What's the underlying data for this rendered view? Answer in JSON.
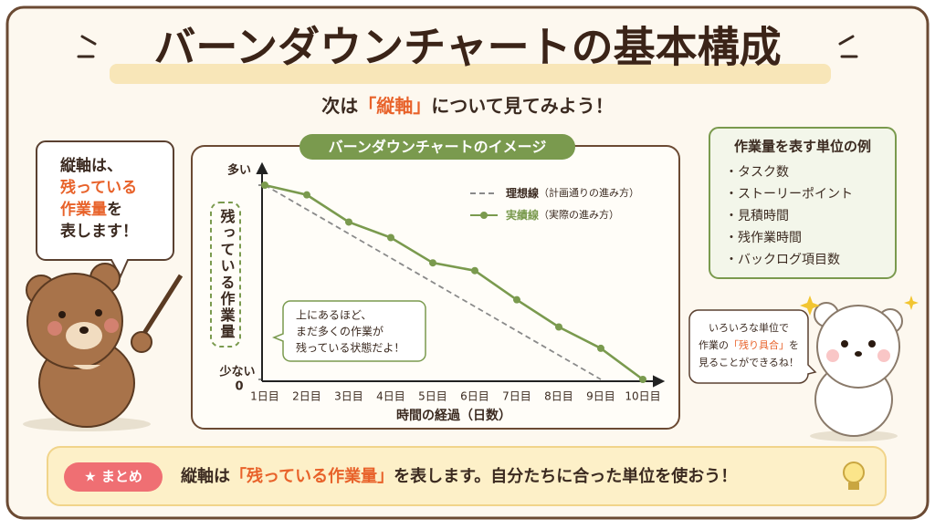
{
  "header": {
    "title": "バーンダウンチャートの基本構成",
    "subtitle": [
      "次は",
      "「縦軸」",
      "について見てみよう！"
    ]
  },
  "left_bubble": [
    "縦軸は、",
    "残っている",
    "作業量",
    "を",
    "表します！"
  ],
  "units_box": {
    "title": "作業量を表す単位の例",
    "items": [
      "・タスク数",
      "・ストーリーポイント",
      "・見積時間",
      "・残作業時間",
      "・バックログ項目数"
    ]
  },
  "right_bubble": [
    "いろいろな単位で",
    "作業の",
    "「残り具合」",
    "を",
    "見ることができるね！"
  ],
  "summary": {
    "badge": "★ まとめ",
    "text": [
      "縦軸は",
      "「残っている作業量」",
      "を表します。自分たちに合った単位を使おう！"
    ]
  },
  "chart_data": {
    "type": "line",
    "title": "バーンダウンチャートのイメージ",
    "y_axis_label": "残っている作業量",
    "x_axis_label": "時間の経過（日数）",
    "y_low_label": "少ない",
    "callout": [
      "上にあるほど、",
      "まだ多くの作業が",
      "残っている状態だよ！"
    ],
    "categories": [
      "1日目",
      "2日目",
      "3日目",
      "4日目",
      "5日目",
      "6日目",
      "7日目",
      "8日目",
      "9日目",
      "10日目"
    ],
    "ylim": [
      0,
      100
    ],
    "yticks": [
      {
        "value": 100,
        "label": "多い"
      },
      0
    ],
    "series": [
      {
        "name": "理想線",
        "note": "（計画通りの進み方）",
        "color": "#8a8a8a",
        "dashed": true,
        "values": [
          100,
          87.5,
          75,
          62.5,
          50,
          37.5,
          25,
          12.5,
          0,
          null
        ]
      },
      {
        "name": "実績線",
        "note": "（実際の進み方）",
        "color": "#7a9a4e",
        "dashed": false,
        "values": [
          100,
          95,
          81,
          73,
          60,
          56,
          41,
          27,
          16,
          0
        ]
      }
    ]
  }
}
